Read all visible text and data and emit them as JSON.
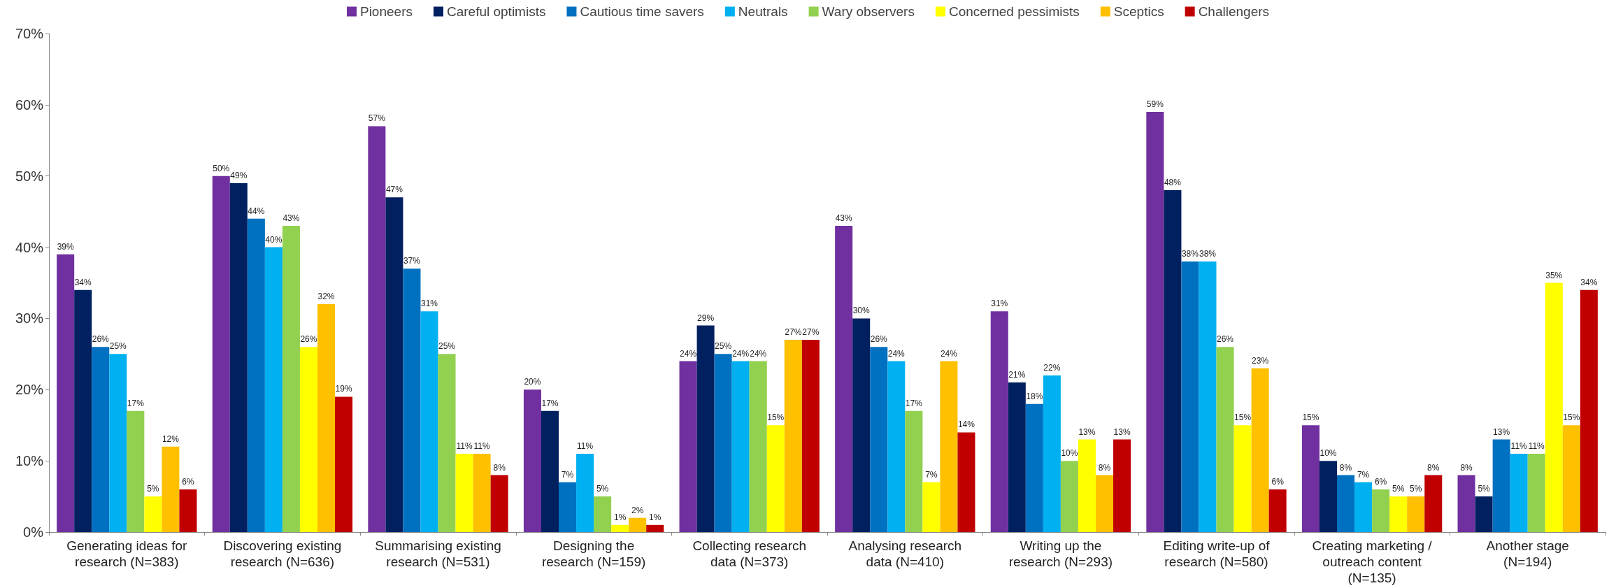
{
  "chart_data": {
    "type": "bar",
    "categories": [
      "Generating ideas for\nresearch (N=383)",
      "Discovering existing\nresearch (N=636)",
      "Summarising existing\nresearch (N=531)",
      "Designing the\nresearch (N=159)",
      "Collecting research\ndata (N=373)",
      "Analysing research\ndata (N=410)",
      "Writing up the\nresearch (N=293)",
      "Editing write-up of\nresearch (N=580)",
      "Creating marketing /\noutreach content\n(N=135)",
      "Another stage\n(N=194)"
    ],
    "series": [
      {
        "name": "Pioneers",
        "color": "#7030a0",
        "values": [
          39,
          50,
          57,
          20,
          24,
          43,
          31,
          59,
          15,
          8
        ],
        "value_labels": [
          "39%",
          "50%",
          "57%",
          "20%",
          "24%",
          "43%",
          "31%",
          "59%",
          "15%",
          "8%"
        ]
      },
      {
        "name": "Careful optimists",
        "color": "#002060",
        "values": [
          34,
          49,
          47,
          17,
          29,
          30,
          21,
          48,
          10,
          5
        ],
        "value_labels": [
          "34%",
          "49%",
          "47%",
          "17%",
          "29%",
          "30%",
          "21%",
          "48%",
          "10%",
          "5%"
        ]
      },
      {
        "name": "Cautious time savers",
        "color": "#0070c0",
        "values": [
          26,
          44,
          37,
          7,
          25,
          26,
          18,
          38,
          8,
          13
        ],
        "value_labels": [
          "26%",
          "44%",
          "37%",
          "7%",
          "25%",
          "26%",
          "18%",
          "38%",
          "8%",
          "13%"
        ]
      },
      {
        "name": "Neutrals",
        "color": "#00b0f0",
        "values": [
          25,
          40,
          31,
          11,
          24,
          24,
          22,
          38,
          7,
          11
        ],
        "value_labels": [
          "25%",
          "40%",
          "31%",
          "11%",
          "24%",
          "24%",
          "22%",
          "38%",
          "7%",
          "11%"
        ]
      },
      {
        "name": "Wary observers",
        "color": "#92d050",
        "values": [
          17,
          43,
          25,
          5,
          24,
          17,
          10,
          26,
          6,
          11
        ],
        "value_labels": [
          "17%",
          "43%",
          "25%",
          "5%",
          "24%",
          "17%",
          "10%",
          "26%",
          "6%",
          "11%"
        ]
      },
      {
        "name": "Concerned pessimists",
        "color": "#ffff00",
        "values": [
          5,
          26,
          11,
          1,
          15,
          7,
          13,
          15,
          5,
          35
        ],
        "value_labels": [
          "5%",
          "26%",
          "11%",
          "1%",
          "15%",
          "7%",
          "13%",
          "15%",
          "5%",
          "35%"
        ]
      },
      {
        "name": "Sceptics",
        "color": "#ffc000",
        "values": [
          12,
          32,
          11,
          2,
          27,
          24,
          8,
          23,
          5,
          15
        ],
        "value_labels": [
          "12%",
          "32%",
          "11%",
          "2%",
          "27%",
          "24%",
          "8%",
          "23%",
          "5%",
          "15%"
        ]
      },
      {
        "name": "Challengers",
        "color": "#c00000",
        "values": [
          6,
          19,
          8,
          1,
          27,
          14,
          13,
          6,
          8,
          34
        ],
        "value_labels": [
          "6%",
          "19%",
          "8%",
          "1%",
          "27%",
          "14%",
          "13%",
          "6%",
          "8%",
          "34%"
        ]
      }
    ],
    "ylim": [
      0,
      70
    ],
    "yticks": [
      {
        "value": 0,
        "label": "0%"
      },
      {
        "value": 10,
        "label": "10%"
      },
      {
        "value": 20,
        "label": "20%"
      },
      {
        "value": 30,
        "label": "30%"
      },
      {
        "value": 40,
        "label": "40%"
      },
      {
        "value": 50,
        "label": "50%"
      },
      {
        "value": 60,
        "label": "60%"
      },
      {
        "value": 70,
        "label": "70%"
      }
    ],
    "legend": "top",
    "grid": false
  }
}
